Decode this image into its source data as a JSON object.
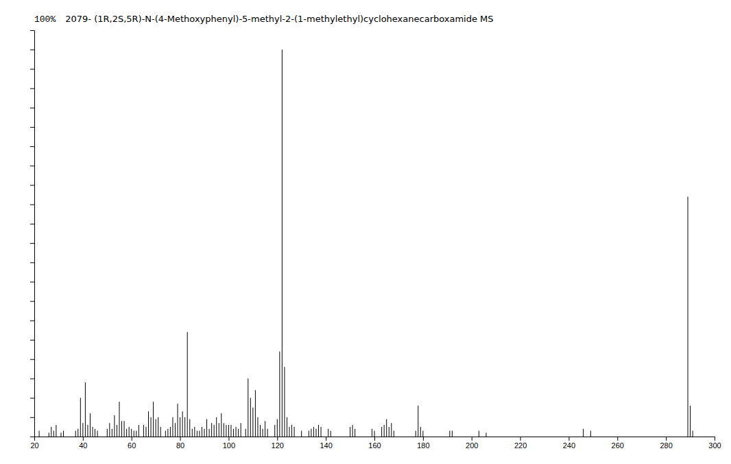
{
  "chart_data": {
    "type": "stem",
    "title": "2079- (1R,2S,5R)-N-(4-Methoxyphenyl)-5-methyl-2-(1-methylethyl)cyclohexanecarboxamide MS",
    "annotations": [
      "100%"
    ],
    "color": "#000000",
    "x": [
      22,
      26,
      27,
      28,
      29,
      31,
      32,
      37,
      38,
      39,
      40,
      41,
      42,
      43,
      44,
      45,
      46,
      50,
      51,
      52,
      53,
      54,
      55,
      56,
      57,
      58,
      59,
      60,
      61,
      62,
      63,
      65,
      66,
      67,
      68,
      69,
      70,
      71,
      72,
      74,
      75,
      76,
      77,
      78,
      79,
      80,
      81,
      82,
      83,
      84,
      85,
      86,
      87,
      88,
      89,
      90,
      91,
      92,
      93,
      94,
      95,
      96,
      97,
      98,
      99,
      100,
      101,
      102,
      103,
      104,
      105,
      107,
      108,
      109,
      110,
      111,
      112,
      113,
      114,
      115,
      116,
      119,
      120,
      121,
      122,
      123,
      124,
      125,
      126,
      127,
      130,
      133,
      134,
      135,
      136,
      137,
      138,
      141,
      142,
      150,
      151,
      152,
      159,
      160,
      163,
      164,
      165,
      166,
      167,
      168,
      177,
      178,
      179,
      180,
      191,
      192,
      203,
      206,
      246,
      249,
      289,
      290,
      291
    ],
    "values": [
      1.5,
      1.0,
      2.5,
      1.5,
      3.0,
      1.0,
      1.5,
      1.5,
      2.0,
      10.0,
      3.5,
      14.0,
      3.0,
      6.0,
      2.5,
      2.0,
      1.5,
      2.0,
      3.5,
      2.0,
      5.5,
      3.0,
      9.0,
      4.0,
      4.0,
      2.0,
      2.5,
      2.0,
      1.5,
      1.5,
      3.0,
      3.0,
      2.5,
      6.5,
      5.0,
      9.0,
      4.5,
      5.0,
      2.5,
      1.5,
      2.0,
      2.5,
      5.0,
      3.5,
      8.5,
      5.0,
      6.5,
      5.0,
      27.0,
      4.5,
      2.0,
      2.5,
      1.5,
      1.5,
      2.5,
      2.0,
      4.5,
      2.0,
      3.5,
      3.0,
      5.0,
      3.5,
      6.0,
      3.5,
      3.0,
      3.0,
      3.0,
      2.0,
      2.5,
      2.0,
      3.5,
      2.0,
      15.0,
      10.0,
      7.5,
      12.0,
      5.0,
      3.0,
      2.0,
      4.0,
      2.0,
      3.0,
      4.5,
      22.0,
      100.0,
      18.0,
      5.0,
      2.5,
      3.0,
      2.5,
      1.5,
      1.5,
      2.0,
      2.5,
      2.0,
      3.0,
      2.5,
      2.0,
      1.5,
      2.5,
      3.0,
      2.0,
      2.0,
      1.5,
      2.5,
      3.0,
      4.5,
      2.5,
      3.5,
      1.5,
      1.5,
      8.0,
      2.5,
      1.5,
      1.5,
      1.5,
      1.5,
      1.0,
      2.0,
      1.5,
      62.0,
      8.0,
      1.5
    ],
    "xlim": [
      20,
      300
    ],
    "xticks": [
      20,
      40,
      60,
      80,
      100,
      120,
      140,
      160,
      180,
      200,
      220,
      240,
      260,
      280,
      300
    ],
    "ylim": [
      0,
      105
    ],
    "yticks": [
      0,
      5,
      10,
      15,
      20,
      25,
      30,
      35,
      40,
      45,
      50,
      55,
      60,
      65,
      70,
      75,
      80,
      85,
      90,
      95,
      100,
      105
    ],
    "tick_labels": "x",
    "grid": false
  }
}
